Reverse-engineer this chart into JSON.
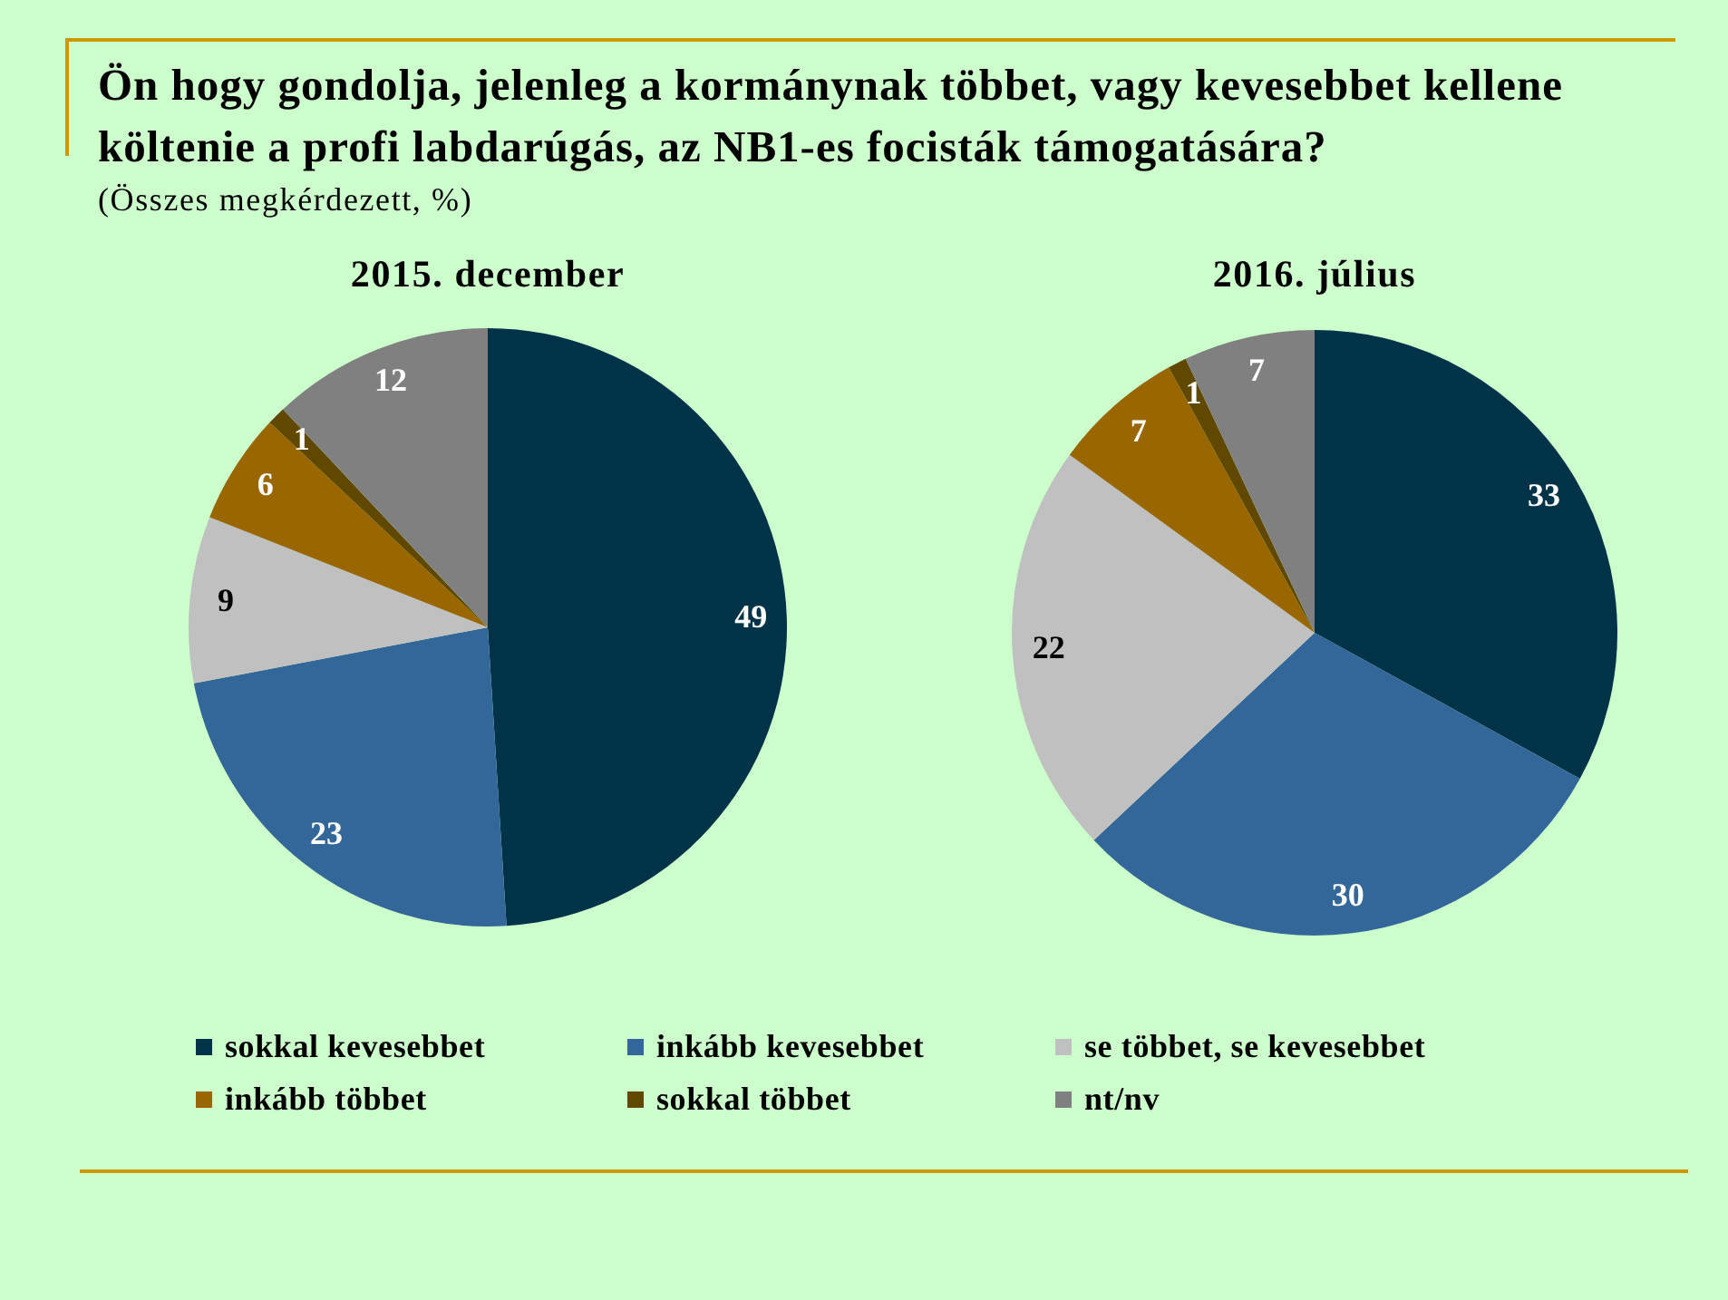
{
  "chart_data": {
    "type": "pie",
    "title": "Ön hogy gondolja, jelenleg a kormánynak többet, vagy kevesebbet kellene költenie a profi labdarúgás, az NB1-es focisták támogatására?",
    "subtitle": "(Összes megkérdezett, %)",
    "categories": [
      "sokkal kevesebbet",
      "inkább kevesebbet",
      "se többet, se kevesebbet",
      "inkább többet",
      "sokkal többet",
      "nt/nv"
    ],
    "colors": [
      "#003347",
      "#336699",
      "#c0c0c0",
      "#996600",
      "#604800",
      "#808080"
    ],
    "series": [
      {
        "name": "2015. december",
        "values": [
          49,
          23,
          9,
          6,
          1,
          12
        ]
      },
      {
        "name": "2016. július",
        "values": [
          33,
          30,
          22,
          7,
          1,
          7
        ]
      }
    ],
    "data_labels": true,
    "legend": "bottom"
  }
}
